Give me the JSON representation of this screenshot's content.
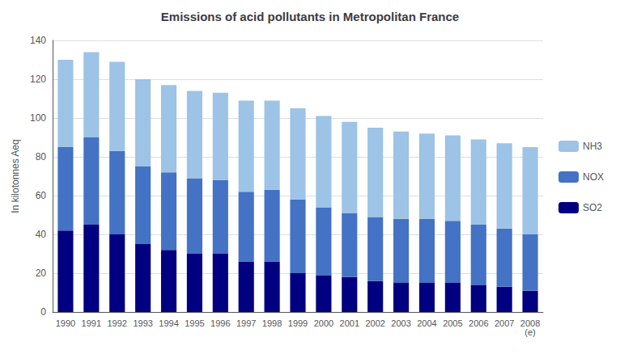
{
  "chart_data": {
    "type": "bar",
    "title": "Emissions of acid pollutants in Metropolitan France",
    "ylabel": "In kilotonnes Aeq",
    "categories": [
      "1990",
      "1991",
      "1992",
      "1993",
      "1994",
      "1995",
      "1996",
      "1997",
      "1998",
      "1999",
      "2000",
      "2001",
      "2002",
      "2003",
      "2004",
      "2005",
      "2006",
      "2007",
      "2008\n(e)"
    ],
    "series": [
      {
        "name": "SO2",
        "color": "#000080",
        "values": [
          42,
          45,
          40,
          35,
          32,
          30,
          30,
          26,
          26,
          20,
          19,
          18,
          16,
          15,
          15,
          15,
          14,
          13,
          11
        ]
      },
      {
        "name": "NOX",
        "color": "#4472C4",
        "values": [
          43,
          45,
          43,
          40,
          40,
          39,
          38,
          36,
          37,
          38,
          35,
          33,
          33,
          33,
          33,
          32,
          31,
          30,
          29
        ]
      },
      {
        "name": "NH3",
        "color": "#9DC3E6",
        "values": [
          45,
          44,
          46,
          45,
          45,
          45,
          45,
          47,
          46,
          47,
          47,
          47,
          46,
          45,
          44,
          44,
          44,
          44,
          45
        ]
      }
    ],
    "stacked": true,
    "ylim": [
      0,
      140
    ],
    "yticks": [
      0,
      20,
      40,
      60,
      80,
      100,
      120,
      140
    ],
    "grid": true,
    "legend": "right"
  }
}
